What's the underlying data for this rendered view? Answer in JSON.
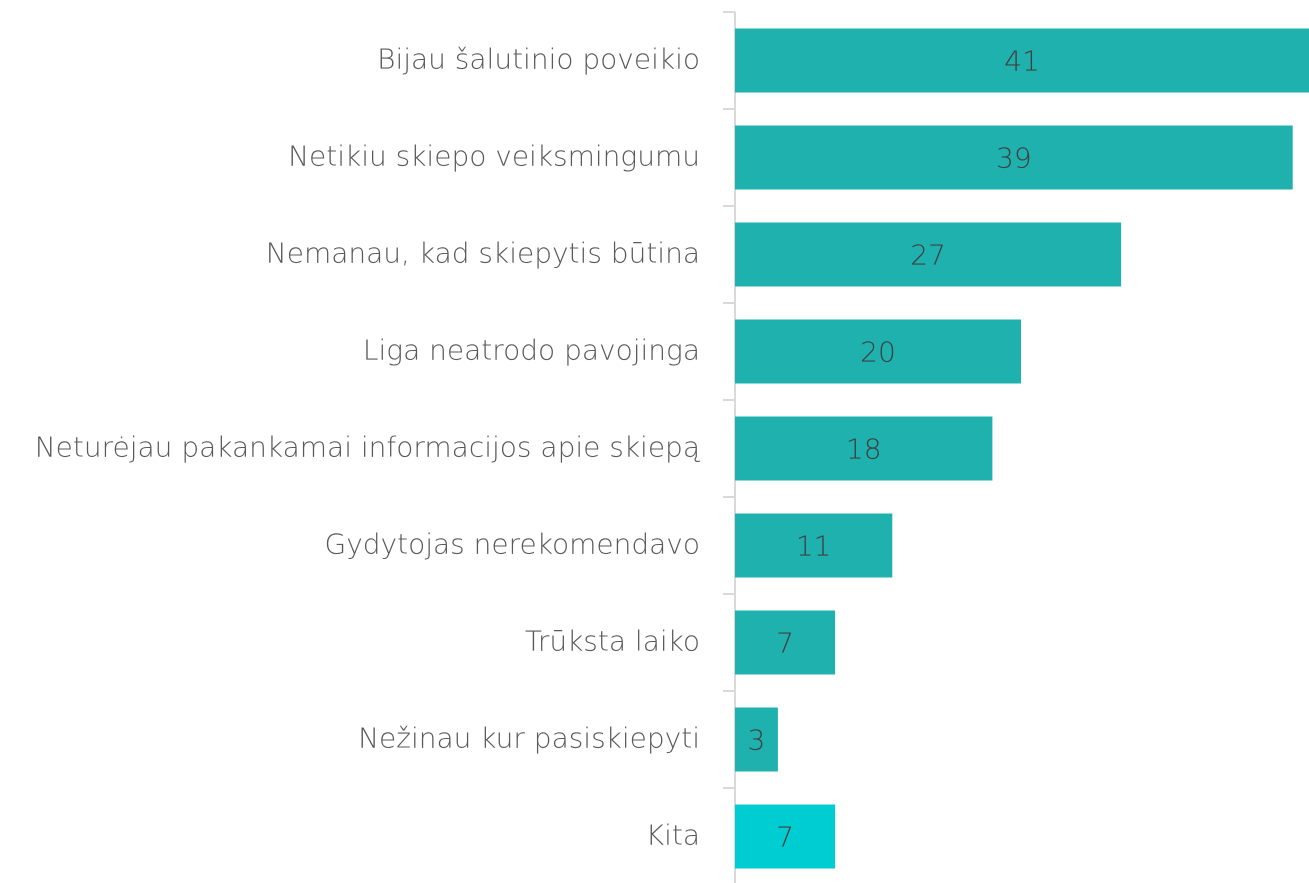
{
  "chart_data": {
    "type": "barh",
    "categories": [
      "Bijau šalutinio poveikio",
      "Netikiu skiepo veiksmingumu",
      "Nemanau, kad skiepytis būtina",
      "Liga neatrodo pavojinga",
      "Neturėjau pakankamai informacijos apie skiepą",
      "Gydytojas nerekomendavo",
      "Trūksta laiko",
      "Nežinau kur pasiskiepyti",
      "Kita"
    ],
    "values": [
      41,
      39,
      27,
      20,
      18,
      11,
      7,
      3,
      7
    ],
    "colors": [
      "#1fb1ae",
      "#1fb1ae",
      "#1fb1ae",
      "#1fb1ae",
      "#1fb1ae",
      "#1fb1ae",
      "#1fb1ae",
      "#1fb1ae",
      "#00cdd1"
    ]
  }
}
